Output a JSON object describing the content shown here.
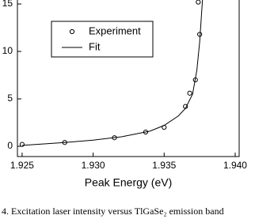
{
  "chart_data": {
    "type": "scatter",
    "x_label": "Peak Energy (eV)",
    "caption": "4.  Excitation laser intensity versus TlGaSe₂ emission band",
    "xlim": [
      1.92467,
      1.94028
    ],
    "ylim": [
      -1.08,
      15.42
    ],
    "xticks": [
      1.925,
      {
        "value": 1.93,
        "label": "1.930"
      },
      1.935,
      {
        "value": 1.94,
        "label": "1.940"
      }
    ],
    "yticks": [
      0,
      5,
      10,
      15
    ],
    "legend": "top-left",
    "series": [
      {
        "name": "Experiment",
        "color": "#000000",
        "mode": "markers",
        "x": [
          1.925,
          1.928,
          1.9315,
          1.9337,
          1.935,
          1.9365,
          1.9368,
          1.9372,
          1.9375,
          1.9374
        ],
        "values": [
          0.2,
          0.4,
          0.9,
          1.5,
          2.0,
          4.2,
          5.6,
          7.0,
          11.8,
          15.2
        ]
      },
      {
        "name": "Fit",
        "color": "#000000",
        "mode": "line",
        "x": [
          1.925,
          1.928,
          1.93,
          1.932,
          1.934,
          1.935,
          1.936,
          1.9365,
          1.937,
          1.9373,
          1.9375,
          1.9377
        ],
        "values": [
          0.1,
          0.4,
          0.65,
          1.0,
          1.6,
          2.2,
          3.2,
          4.0,
          5.5,
          8.0,
          11.0,
          15.5
        ]
      }
    ]
  }
}
